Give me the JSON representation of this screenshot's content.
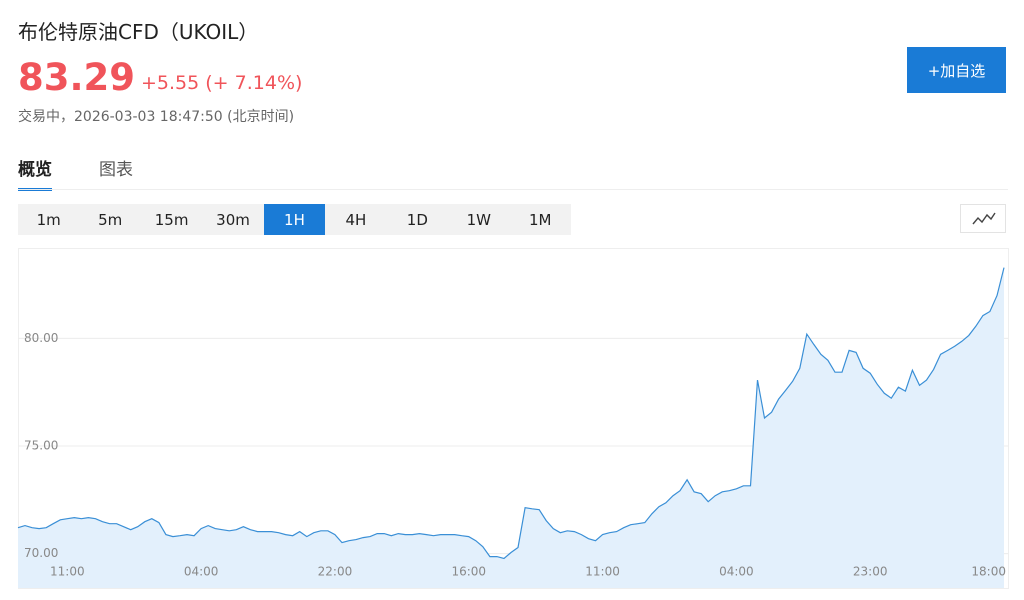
{
  "header": {
    "title": "布伦特原油CFD（UKOIL）",
    "price": "83.29",
    "change": "+5.55 (+ 7.14%)",
    "status": "交易中，2026-03-03 18:47:50 (北京时间)",
    "watch_button": "+加自选"
  },
  "tabs": [
    "概览",
    "图表"
  ],
  "active_tab": 0,
  "intervals": [
    "1m",
    "5m",
    "15m",
    "30m",
    "1H",
    "4H",
    "1D",
    "1W",
    "1M"
  ],
  "active_interval": 4,
  "chart_data": {
    "type": "line",
    "color": "#3a8fd6",
    "fill_color": "#e3f0fc",
    "grid": true,
    "categories": [
      null,
      null,
      null,
      null,
      null,
      null,
      null,
      "11:00",
      null,
      null,
      null,
      null,
      null,
      null,
      null,
      null,
      null,
      null,
      null,
      null,
      null,
      null,
      null,
      null,
      null,
      null,
      "04:00",
      null,
      null,
      null,
      null,
      null,
      null,
      null,
      null,
      null,
      null,
      null,
      null,
      null,
      null,
      null,
      null,
      null,
      null,
      "22:00",
      null,
      null,
      null,
      null,
      null,
      null,
      null,
      null,
      null,
      null,
      null,
      null,
      null,
      null,
      null,
      null,
      null,
      null,
      "16:00",
      null,
      null,
      null,
      null,
      null,
      null,
      null,
      null,
      null,
      null,
      null,
      null,
      null,
      null,
      null,
      null,
      null,
      null,
      "11:00",
      null,
      null,
      null,
      null,
      null,
      null,
      null,
      null,
      null,
      null,
      null,
      null,
      null,
      null,
      null,
      null,
      null,
      null,
      "04:00",
      null,
      null,
      null,
      null,
      null,
      null,
      null,
      null,
      null,
      null,
      null,
      null,
      null,
      null,
      null,
      null,
      null,
      null,
      "23:00",
      null,
      null,
      null,
      null,
      null,
      null,
      null,
      null,
      null,
      null,
      null,
      null,
      null,
      null,
      null,
      null,
      null,
      null,
      "18:00"
    ],
    "values": [
      71.2,
      71.3,
      71.2,
      71.16,
      71.2,
      71.39,
      71.57,
      71.62,
      71.67,
      71.62,
      71.67,
      71.62,
      71.48,
      71.39,
      71.39,
      71.25,
      71.11,
      71.25,
      71.48,
      71.62,
      71.44,
      70.88,
      70.79,
      70.83,
      70.88,
      70.83,
      71.16,
      71.3,
      71.16,
      71.11,
      71.06,
      71.11,
      71.25,
      71.11,
      71.02,
      71.02,
      71.02,
      70.97,
      70.88,
      70.83,
      71.02,
      70.79,
      70.97,
      71.06,
      71.06,
      70.88,
      70.51,
      70.6,
      70.65,
      70.74,
      70.79,
      70.93,
      70.93,
      70.83,
      70.93,
      70.88,
      70.88,
      70.93,
      70.88,
      70.83,
      70.88,
      70.88,
      70.88,
      70.83,
      70.79,
      70.6,
      70.32,
      69.86,
      69.86,
      69.77,
      70.05,
      70.28,
      72.13,
      72.08,
      72.04,
      71.53,
      71.16,
      70.97,
      71.06,
      71.02,
      70.88,
      70.69,
      70.6,
      70.88,
      70.97,
      71.02,
      71.2,
      71.34,
      71.39,
      71.44,
      71.85,
      72.18,
      72.36,
      72.69,
      72.92,
      73.43,
      72.87,
      72.78,
      72.41,
      72.69,
      72.87,
      72.92,
      73.01,
      73.15,
      73.15,
      78.06,
      76.3,
      76.57,
      77.18,
      77.59,
      78.01,
      78.61,
      80.2,
      79.72,
      79.26,
      78.98,
      78.43,
      78.43,
      79.44,
      79.35,
      78.61,
      78.38,
      77.87,
      77.45,
      77.22,
      77.73,
      77.55,
      78.52,
      77.82,
      78.06,
      78.56,
      79.26,
      79.44,
      79.63,
      79.86,
      80.14,
      80.56,
      81.06,
      81.25,
      81.99,
      83.29
    ],
    "ylim": [
      68.4,
      84.2
    ],
    "yticks": [
      {
        "value": 70,
        "label": "70.00"
      },
      {
        "value": 75,
        "label": "75.00"
      },
      {
        "value": 80,
        "label": "80.00"
      }
    ]
  }
}
